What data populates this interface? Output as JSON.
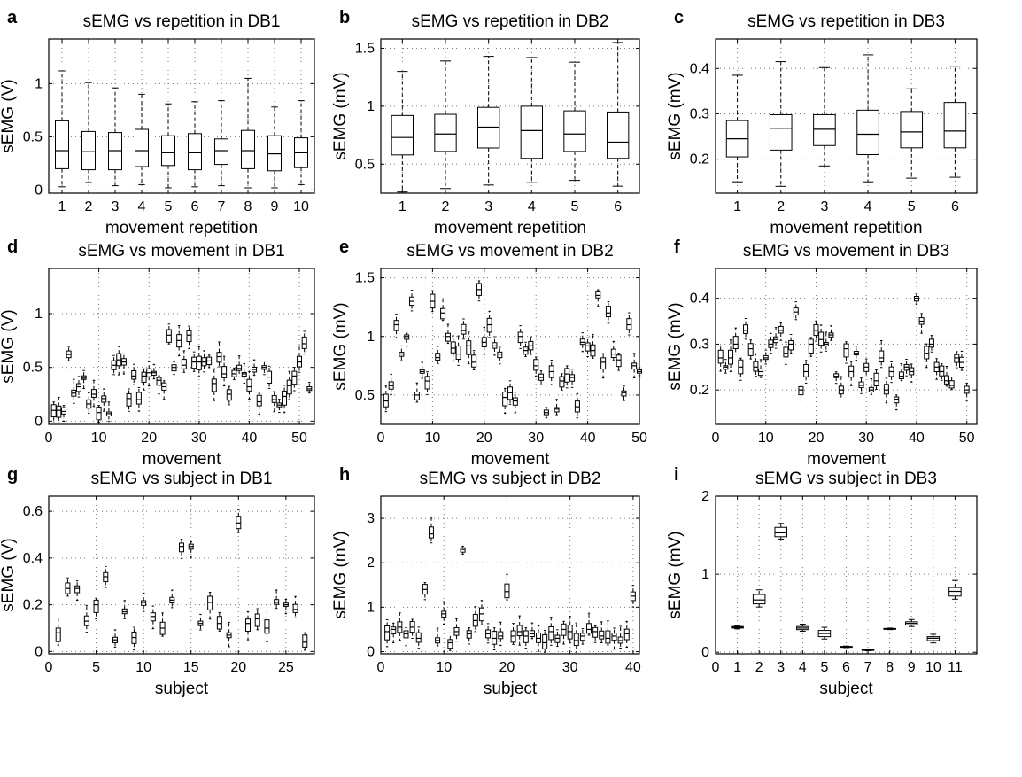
{
  "chart_data": [
    {
      "panel": "a",
      "type": "box",
      "title": "sEMG vs repetition in DB1",
      "xlabel": "movement repetition",
      "ylabel": "sEMG (V)",
      "xlim": [
        0.5,
        10.5
      ],
      "ylim": [
        -0.03,
        1.42
      ],
      "xticks": [
        1,
        2,
        3,
        4,
        5,
        6,
        7,
        8,
        9,
        10
      ],
      "xticklabels": [
        "1",
        "2",
        "3",
        "4",
        "5",
        "6",
        "7",
        "8",
        "9",
        "10"
      ],
      "yticks": [
        0,
        0.5,
        1
      ],
      "yticklabels": [
        "0",
        "0.5",
        "1"
      ],
      "grid": true,
      "box_width": 0.5,
      "boxes": [
        {
          "x": 1,
          "min": 0.03,
          "q1": 0.2,
          "median": 0.37,
          "q3": 0.65,
          "max": 1.12
        },
        {
          "x": 2,
          "min": 0.07,
          "q1": 0.19,
          "median": 0.36,
          "q3": 0.55,
          "max": 1.01
        },
        {
          "x": 3,
          "min": 0.04,
          "q1": 0.19,
          "median": 0.37,
          "q3": 0.54,
          "max": 0.96
        },
        {
          "x": 4,
          "min": 0.05,
          "q1": 0.22,
          "median": 0.37,
          "q3": 0.57,
          "max": 0.9
        },
        {
          "x": 5,
          "min": 0.02,
          "q1": 0.23,
          "median": 0.35,
          "q3": 0.51,
          "max": 0.81
        },
        {
          "x": 6,
          "min": 0.03,
          "q1": 0.19,
          "median": 0.35,
          "q3": 0.53,
          "max": 0.83
        },
        {
          "x": 7,
          "min": 0.04,
          "q1": 0.24,
          "median": 0.37,
          "q3": 0.48,
          "max": 0.84
        },
        {
          "x": 8,
          "min": 0.02,
          "q1": 0.2,
          "median": 0.37,
          "q3": 0.56,
          "max": 1.05
        },
        {
          "x": 9,
          "min": 0.02,
          "q1": 0.18,
          "median": 0.34,
          "q3": 0.51,
          "max": 0.78
        },
        {
          "x": 10,
          "min": 0.05,
          "q1": 0.21,
          "median": 0.35,
          "q3": 0.49,
          "max": 0.84
        }
      ]
    },
    {
      "panel": "b",
      "type": "box",
      "title": "sEMG vs repetition in DB2",
      "xlabel": "movement repetition",
      "ylabel": "sEMG (mV)",
      "xlim": [
        0.5,
        6.5
      ],
      "ylim": [
        0.25,
        1.58
      ],
      "xticks": [
        1,
        2,
        3,
        4,
        5,
        6
      ],
      "xticklabels": [
        "1",
        "2",
        "3",
        "4",
        "5",
        "6"
      ],
      "yticks": [
        0.5,
        1,
        1.5
      ],
      "yticklabels": [
        "0.5",
        "1",
        "1.5"
      ],
      "grid": true,
      "box_width": 0.5,
      "boxes": [
        {
          "x": 1,
          "min": 0.26,
          "q1": 0.58,
          "median": 0.73,
          "q3": 0.92,
          "max": 1.3
        },
        {
          "x": 2,
          "min": 0.29,
          "q1": 0.61,
          "median": 0.76,
          "q3": 0.93,
          "max": 1.39
        },
        {
          "x": 3,
          "min": 0.32,
          "q1": 0.64,
          "median": 0.82,
          "q3": 0.99,
          "max": 1.43
        },
        {
          "x": 4,
          "min": 0.34,
          "q1": 0.55,
          "median": 0.79,
          "q3": 1.0,
          "max": 1.42
        },
        {
          "x": 5,
          "min": 0.36,
          "q1": 0.61,
          "median": 0.76,
          "q3": 0.96,
          "max": 1.38
        },
        {
          "x": 6,
          "min": 0.31,
          "q1": 0.55,
          "median": 0.69,
          "q3": 0.95,
          "max": 1.55
        }
      ]
    },
    {
      "panel": "c",
      "type": "box",
      "title": "sEMG vs repetition in DB3",
      "xlabel": "movement repetition",
      "ylabel": "sEMG (mV)",
      "xlim": [
        0.5,
        6.5
      ],
      "ylim": [
        0.125,
        0.465
      ],
      "xticks": [
        1,
        2,
        3,
        4,
        5,
        6
      ],
      "xticklabels": [
        "1",
        "2",
        "3",
        "4",
        "5",
        "6"
      ],
      "yticks": [
        0.2,
        0.3,
        0.4
      ],
      "yticklabels": [
        "0.2",
        "0.3",
        "0.4"
      ],
      "grid": true,
      "box_width": 0.5,
      "boxes": [
        {
          "x": 1,
          "min": 0.15,
          "q1": 0.205,
          "median": 0.245,
          "q3": 0.285,
          "max": 0.385
        },
        {
          "x": 2,
          "min": 0.14,
          "q1": 0.22,
          "median": 0.268,
          "q3": 0.298,
          "max": 0.415
        },
        {
          "x": 3,
          "min": 0.185,
          "q1": 0.23,
          "median": 0.266,
          "q3": 0.298,
          "max": 0.402
        },
        {
          "x": 4,
          "min": 0.15,
          "q1": 0.21,
          "median": 0.255,
          "q3": 0.308,
          "max": 0.43
        },
        {
          "x": 5,
          "min": 0.158,
          "q1": 0.225,
          "median": 0.26,
          "q3": 0.305,
          "max": 0.355
        },
        {
          "x": 6,
          "min": 0.16,
          "q1": 0.225,
          "median": 0.262,
          "q3": 0.325,
          "max": 0.405
        }
      ]
    },
    {
      "panel": "d",
      "type": "box",
      "title": "sEMG vs movement in DB1",
      "xlabel": "movement",
      "ylabel": "sEMG (V)",
      "xlim": [
        0,
        53
      ],
      "ylim": [
        -0.03,
        1.42
      ],
      "xticks": [
        0,
        10,
        20,
        30,
        40,
        50
      ],
      "xticklabels": [
        "0",
        "10",
        "20",
        "30",
        "40",
        "50"
      ],
      "yticks": [
        0,
        0.5,
        1
      ],
      "yticklabels": [
        "0",
        "0.5",
        "1"
      ],
      "grid": true,
      "box_width": 0.4,
      "generated": true,
      "median_profile": [
        0.1,
        0.1,
        0.09,
        0.62,
        0.26,
        0.32,
        0.4,
        0.16,
        0.25,
        0.08,
        0.21,
        0.07,
        0.52,
        0.57,
        0.55,
        0.21,
        0.42,
        0.2,
        0.42,
        0.45,
        0.45,
        0.38,
        0.32,
        0.8,
        0.5,
        0.75,
        0.52,
        0.8,
        0.55,
        0.55,
        0.55,
        0.56,
        0.35,
        0.6,
        0.44,
        0.25,
        0.44,
        0.49,
        0.44,
        0.32,
        0.48,
        0.18,
        0.5,
        0.41,
        0.2,
        0.15,
        0.23,
        0.33,
        0.42,
        0.55,
        0.72,
        0.3
      ]
    },
    {
      "panel": "e",
      "type": "box",
      "title": "sEMG vs movement in DB2",
      "xlabel": "movement",
      "ylabel": "sEMG (mV)",
      "xlim": [
        0,
        50
      ],
      "ylim": [
        0.25,
        1.58
      ],
      "xticks": [
        0,
        10,
        20,
        30,
        40,
        50
      ],
      "xticklabels": [
        "0",
        "10",
        "20",
        "30",
        "40",
        "50"
      ],
      "yticks": [
        0.5,
        1,
        1.5
      ],
      "yticklabels": [
        "0.5",
        "1",
        "1.5"
      ],
      "grid": true,
      "box_width": 0.4,
      "generated": true,
      "median_profile": [
        0.45,
        0.58,
        1.1,
        0.85,
        1.0,
        1.3,
        0.5,
        0.7,
        0.62,
        1.3,
        0.82,
        1.2,
        1.0,
        0.9,
        0.85,
        1.05,
        0.92,
        0.78,
        1.4,
        0.95,
        1.1,
        0.92,
        0.85,
        0.48,
        0.52,
        0.45,
        1.0,
        0.88,
        0.92,
        0.75,
        0.65,
        0.35,
        0.7,
        0.38,
        0.62,
        0.68,
        0.65,
        0.4,
        0.95,
        0.92,
        0.88,
        1.35,
        0.78,
        1.2,
        0.85,
        0.8,
        0.52,
        1.1,
        0.75,
        0.7
      ]
    },
    {
      "panel": "f",
      "type": "box",
      "title": "sEMG vs movement in DB3",
      "xlabel": "movement",
      "ylabel": "sEMG (mV)",
      "xlim": [
        0,
        52
      ],
      "ylim": [
        0.125,
        0.465
      ],
      "xticks": [
        0,
        10,
        20,
        30,
        40,
        50
      ],
      "xticklabels": [
        "0",
        "10",
        "20",
        "30",
        "40",
        "50"
      ],
      "yticks": [
        0.2,
        0.3,
        0.4
      ],
      "yticklabels": [
        "0.2",
        "0.3",
        "0.4"
      ],
      "grid": true,
      "box_width": 0.4,
      "generated": true,
      "median_profile": [
        0.27,
        0.25,
        0.27,
        0.3,
        0.25,
        0.33,
        0.29,
        0.25,
        0.24,
        0.27,
        0.3,
        0.31,
        0.33,
        0.28,
        0.3,
        0.37,
        0.2,
        0.24,
        0.3,
        0.33,
        0.31,
        0.3,
        0.32,
        0.23,
        0.2,
        0.29,
        0.24,
        0.28,
        0.21,
        0.25,
        0.2,
        0.22,
        0.27,
        0.2,
        0.24,
        0.18,
        0.23,
        0.25,
        0.24,
        0.4,
        0.35,
        0.28,
        0.3,
        0.25,
        0.24,
        0.22,
        0.21,
        0.27,
        0.26,
        0.2
      ]
    },
    {
      "panel": "g",
      "type": "box",
      "title": "sEMG vs subject in DB1",
      "xlabel": "subject",
      "ylabel": "sEMG (V)",
      "xlim": [
        0,
        28
      ],
      "ylim": [
        -0.01,
        0.665
      ],
      "xticks": [
        0,
        5,
        10,
        15,
        20,
        25
      ],
      "xticklabels": [
        "0",
        "5",
        "10",
        "15",
        "20",
        "25"
      ],
      "yticks": [
        0,
        0.2,
        0.4,
        0.6
      ],
      "yticklabels": [
        "0",
        "0.2",
        "0.4",
        "0.6"
      ],
      "grid": true,
      "box_width": 0.4,
      "generated": true,
      "median_profile": [
        0.08,
        0.27,
        0.27,
        0.13,
        0.2,
        0.32,
        0.05,
        0.17,
        0.06,
        0.21,
        0.15,
        0.1,
        0.22,
        0.45,
        0.45,
        0.12,
        0.21,
        0.12,
        0.07,
        0.55,
        0.12,
        0.14,
        0.1,
        0.21,
        0.2,
        0.18,
        0.04
      ]
    },
    {
      "panel": "h",
      "type": "box",
      "title": "sEMG vs subject in DB2",
      "xlabel": "subject",
      "ylabel": "sEMG (mV)",
      "xlim": [
        0,
        41
      ],
      "ylim": [
        -0.05,
        3.5
      ],
      "xticks": [
        0,
        10,
        20,
        30,
        40
      ],
      "xticklabels": [
        "0",
        "10",
        "20",
        "30",
        "40"
      ],
      "yticks": [
        0,
        1,
        2,
        3
      ],
      "yticklabels": [
        "0",
        "1",
        "2",
        "3"
      ],
      "grid": true,
      "box_width": 0.4,
      "generated": true,
      "median_profile": [
        0.45,
        0.5,
        0.55,
        0.4,
        0.55,
        0.3,
        1.4,
        2.65,
        0.25,
        0.85,
        0.2,
        0.45,
        2.3,
        0.4,
        0.7,
        0.85,
        0.4,
        0.3,
        0.35,
        1.35,
        0.35,
        0.45,
        0.35,
        0.4,
        0.3,
        0.2,
        0.45,
        0.3,
        0.5,
        0.45,
        0.25,
        0.35,
        0.5,
        0.45,
        0.35,
        0.3,
        0.35,
        0.25,
        0.4,
        1.25
      ]
    },
    {
      "panel": "i",
      "type": "box",
      "title": "sEMG vs subject in DB3",
      "xlabel": "subject",
      "ylabel": "sEMG (mV)",
      "xlim": [
        0,
        12
      ],
      "ylim": [
        -0.02,
        2.0
      ],
      "xticks": [
        0,
        1,
        2,
        3,
        4,
        5,
        6,
        7,
        8,
        9,
        10,
        11
      ],
      "xticklabels": [
        "0",
        "1",
        "2",
        "3",
        "4",
        "5",
        "6",
        "7",
        "8",
        "9",
        "10",
        "11"
      ],
      "yticks": [
        0,
        1,
        2
      ],
      "yticklabels": [
        "0",
        "1",
        "2"
      ],
      "grid": true,
      "box_width": 0.55,
      "boxes": [
        {
          "x": 1,
          "min": 0.3,
          "q1": 0.31,
          "median": 0.32,
          "q3": 0.33,
          "max": 0.34
        },
        {
          "x": 2,
          "min": 0.58,
          "q1": 0.62,
          "median": 0.67,
          "q3": 0.74,
          "max": 0.8
        },
        {
          "x": 3,
          "min": 1.45,
          "q1": 1.48,
          "median": 1.53,
          "q3": 1.6,
          "max": 1.65
        },
        {
          "x": 4,
          "min": 0.27,
          "q1": 0.29,
          "median": 0.31,
          "q3": 0.33,
          "max": 0.36
        },
        {
          "x": 5,
          "min": 0.17,
          "q1": 0.2,
          "median": 0.24,
          "q3": 0.28,
          "max": 0.32
        },
        {
          "x": 6,
          "min": 0.06,
          "q1": 0.065,
          "median": 0.07,
          "q3": 0.075,
          "max": 0.08
        },
        {
          "x": 7,
          "min": 0.02,
          "q1": 0.025,
          "median": 0.03,
          "q3": 0.035,
          "max": 0.04
        },
        {
          "x": 8,
          "min": 0.29,
          "q1": 0.295,
          "median": 0.3,
          "q3": 0.305,
          "max": 0.31
        },
        {
          "x": 9,
          "min": 0.33,
          "q1": 0.35,
          "median": 0.37,
          "q3": 0.39,
          "max": 0.42
        },
        {
          "x": 10,
          "min": 0.12,
          "q1": 0.15,
          "median": 0.18,
          "q3": 0.2,
          "max": 0.23
        },
        {
          "x": 11,
          "min": 0.68,
          "q1": 0.72,
          "median": 0.78,
          "q3": 0.83,
          "max": 0.92
        }
      ]
    }
  ],
  "panels_layout": {
    "left": [
      55,
      430,
      808
    ],
    "width": [
      300,
      292,
      295
    ],
    "top": [
      44,
      303,
      560
    ],
    "height": [
      174,
      176,
      178
    ]
  }
}
